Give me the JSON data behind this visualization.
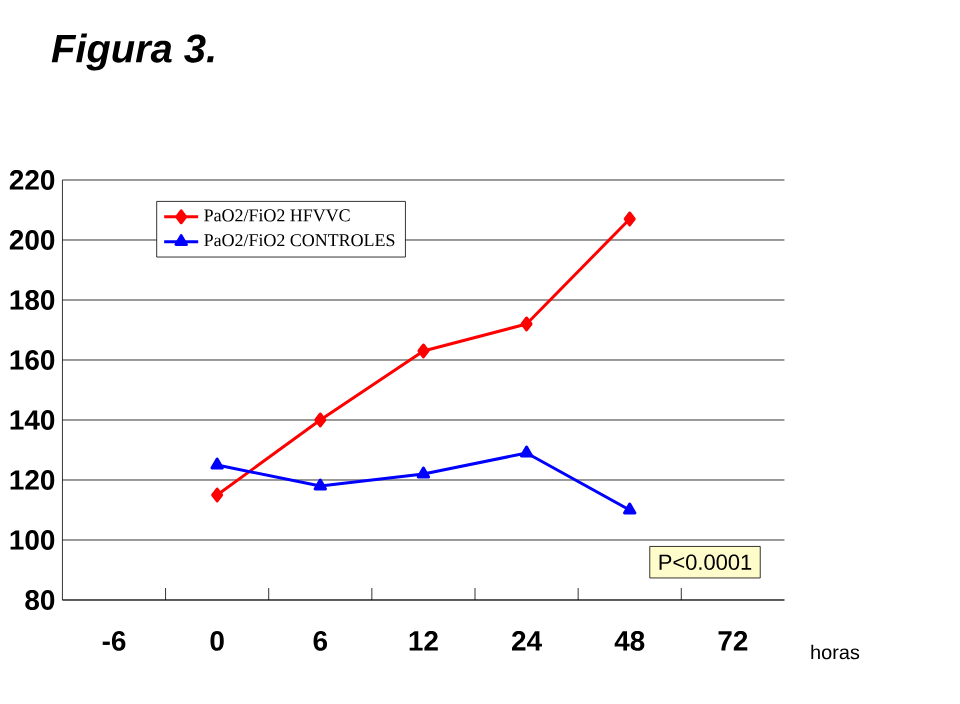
{
  "chart_data": {
    "type": "line",
    "title": "Figura 3.",
    "xlabel": "horas",
    "categories": [
      "-6",
      "0",
      "6",
      "12",
      "24",
      "48",
      "72"
    ],
    "series": [
      {
        "name": "PaO2/FiO2 HFVVC",
        "color": "#ff0000",
        "marker": "diamond",
        "values": [
          null,
          115,
          140,
          163,
          172,
          207,
          null
        ]
      },
      {
        "name": "PaO2/FiO2 CONTROLES",
        "color": "#0000ff",
        "marker": "triangle",
        "values": [
          null,
          125,
          118,
          122,
          129,
          110,
          null
        ]
      }
    ],
    "ylim": [
      80,
      220
    ],
    "yticks": [
      80,
      100,
      120,
      140,
      160,
      180,
      200,
      220
    ],
    "grid": "y",
    "legend": "top left",
    "annotations": [
      "P<0.0001"
    ]
  }
}
